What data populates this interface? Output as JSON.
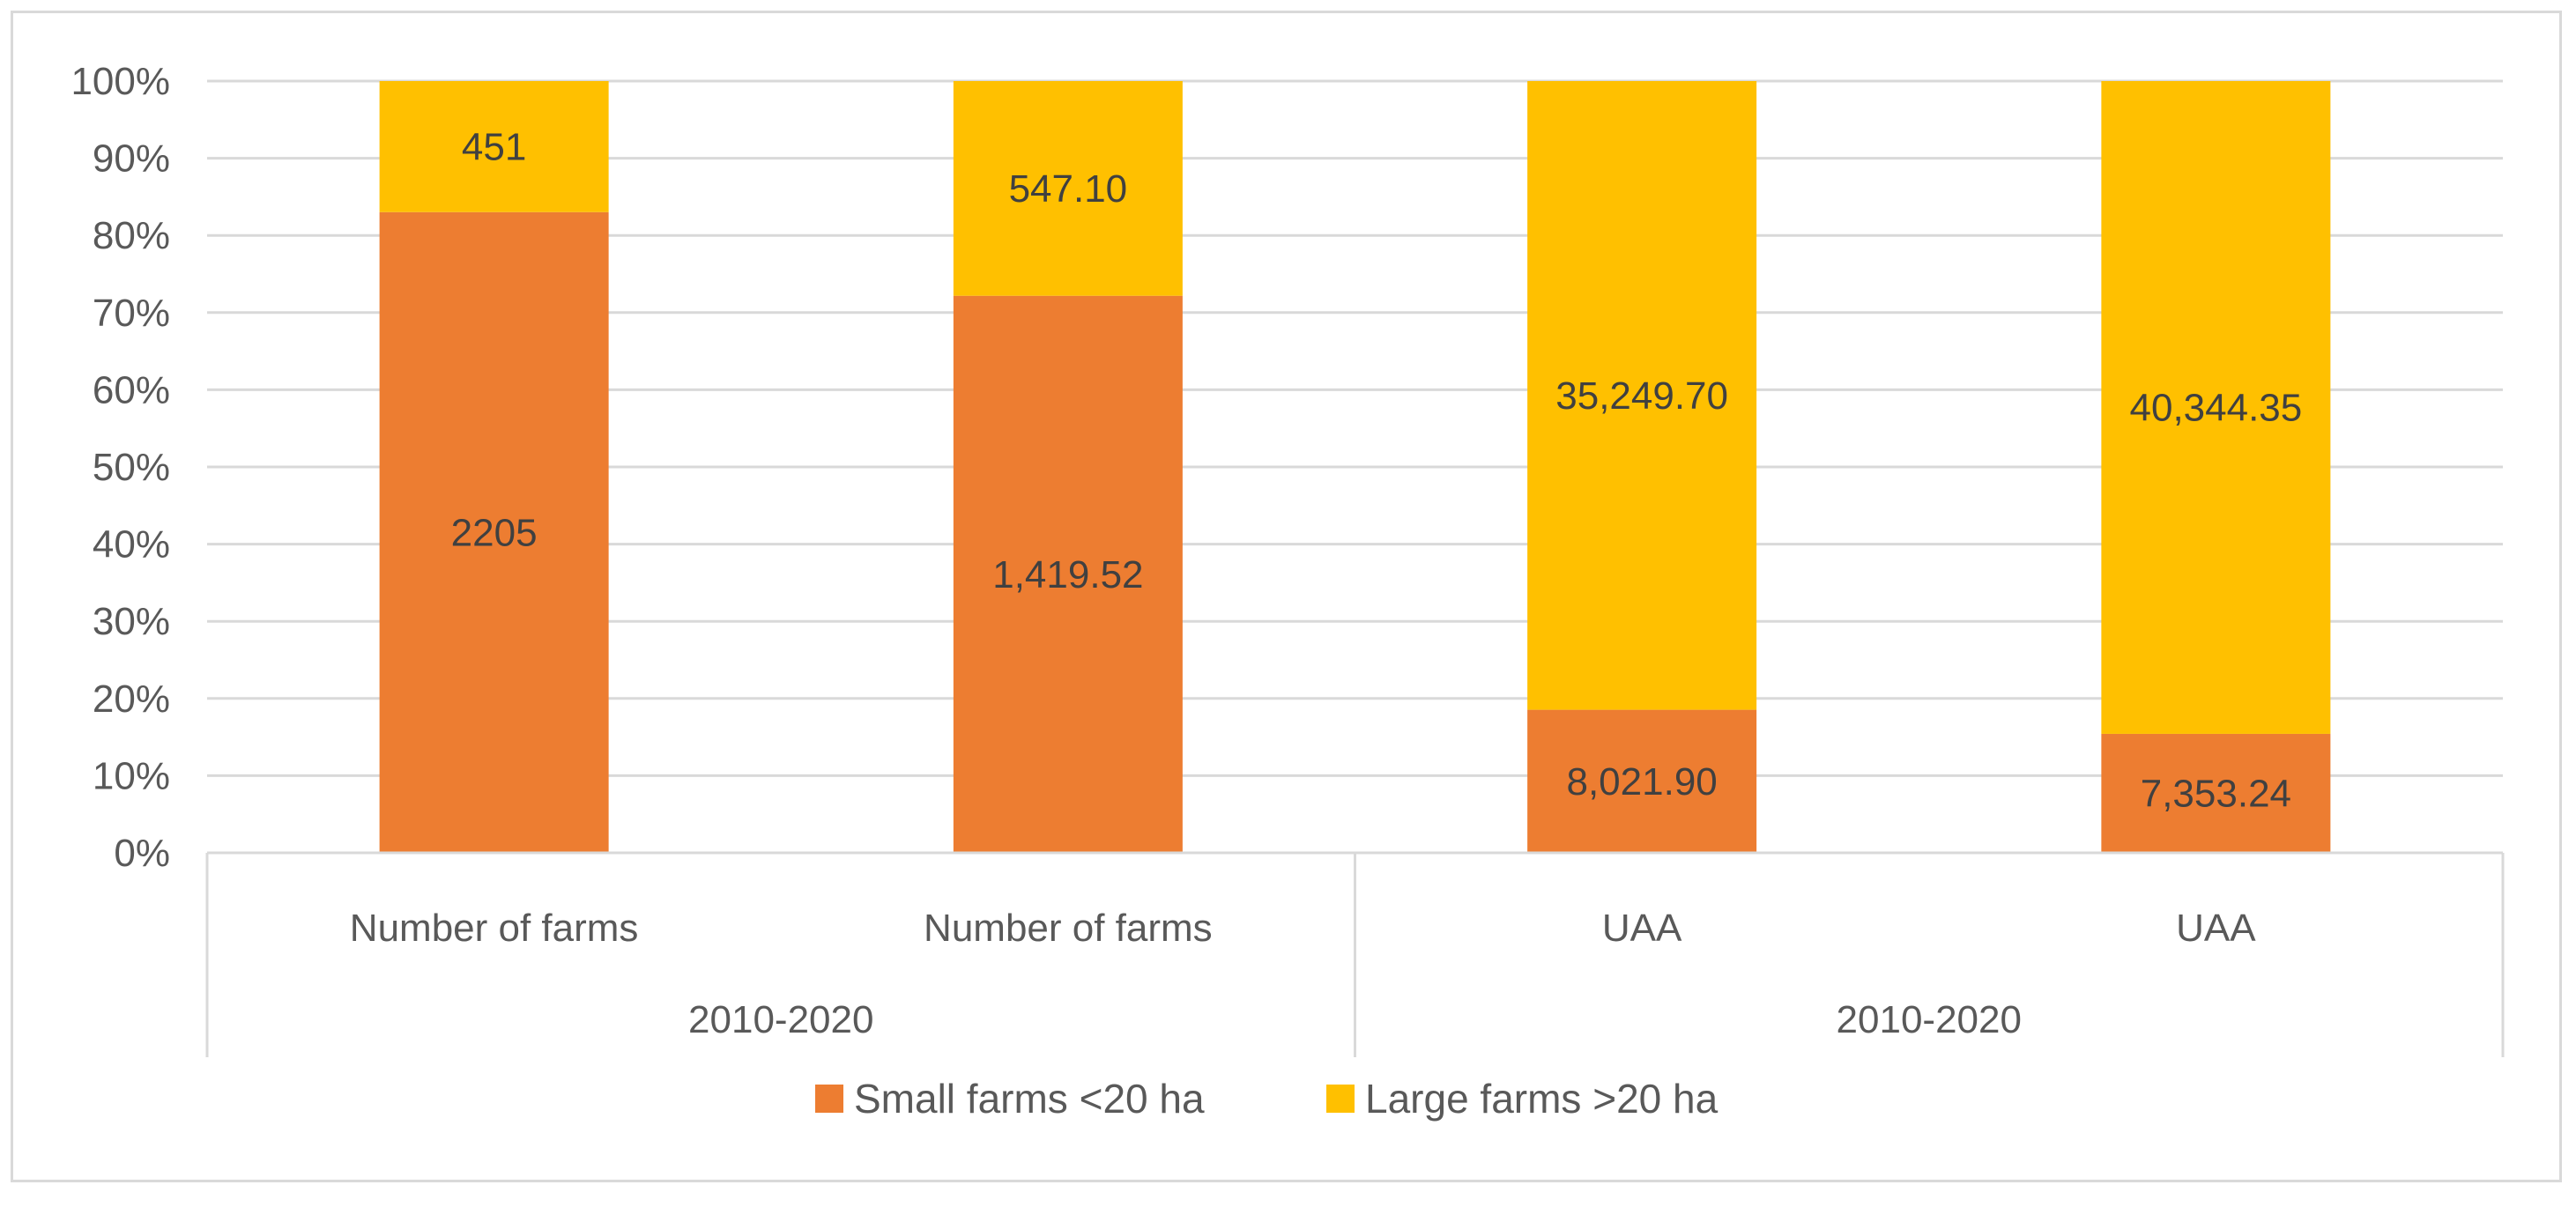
{
  "chart_data": {
    "type": "bar",
    "stacked": "percent",
    "title": "",
    "xlabel": "",
    "ylabel": "",
    "ylim": [
      0,
      100
    ],
    "yticks": [
      "0%",
      "10%",
      "20%",
      "30%",
      "40%",
      "50%",
      "60%",
      "70%",
      "80%",
      "90%",
      "100%"
    ],
    "grid": true,
    "legend_position": "bottom",
    "categories": [
      "Number of farms",
      "Number of farms",
      "UAA",
      "UAA"
    ],
    "groups": [
      {
        "label": "2010-2020",
        "categories": [
          0,
          1
        ]
      },
      {
        "label": "2010-2020",
        "categories": [
          2,
          3
        ]
      }
    ],
    "series": [
      {
        "name": "Small farms <20 ha",
        "color": "#ED7D31",
        "values": [
          2205,
          1419.52,
          8021.9,
          7353.24
        ],
        "labels": [
          "2205",
          "1,419.52",
          "8,021.90",
          "7,353.24"
        ]
      },
      {
        "name": "Large farms >20 ha",
        "color": "#FFC000",
        "values": [
          451,
          547.1,
          35249.7,
          40344.35
        ],
        "labels": [
          "451",
          "547.10",
          "35,249.70",
          "40,344.35"
        ]
      }
    ]
  }
}
